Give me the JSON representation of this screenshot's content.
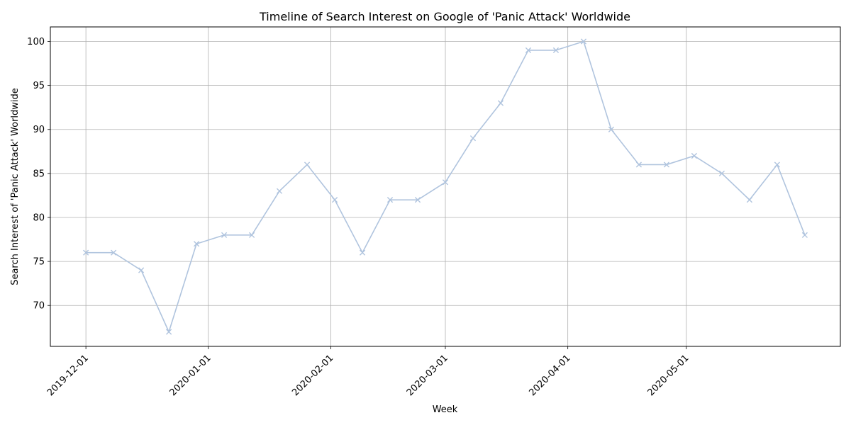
{
  "chart_data": {
    "type": "line",
    "title": "Timeline of Search Interest on Google of 'Panic Attack' Worldwide",
    "xlabel": "Week",
    "ylabel": "Search Interest of 'Panic Attack' Worldwide",
    "x_type": "date",
    "x": [
      "2019-12-01",
      "2019-12-08",
      "2019-12-15",
      "2019-12-22",
      "2019-12-29",
      "2020-01-05",
      "2020-01-12",
      "2020-01-19",
      "2020-01-26",
      "2020-02-02",
      "2020-02-09",
      "2020-02-16",
      "2020-02-23",
      "2020-03-01",
      "2020-03-08",
      "2020-03-15",
      "2020-03-22",
      "2020-03-29",
      "2020-04-05",
      "2020-04-12",
      "2020-04-19",
      "2020-04-26",
      "2020-05-03",
      "2020-05-10",
      "2020-05-17",
      "2020-05-24",
      "2020-05-31"
    ],
    "series": [
      {
        "values": [
          76,
          76,
          74,
          67,
          77,
          78,
          78,
          83,
          86,
          82,
          76,
          82,
          82,
          84,
          89,
          93,
          99,
          99,
          100,
          90,
          86,
          86,
          87,
          85,
          82,
          86,
          78
        ],
        "color": "#b0c4de",
        "marker": "x"
      }
    ],
    "x_ticks": [
      "2019-12-01",
      "2020-01-01",
      "2020-02-01",
      "2020-03-01",
      "2020-04-01",
      "2020-05-01"
    ],
    "y_ticks": [
      70,
      75,
      80,
      85,
      90,
      95,
      100
    ],
    "xlim": [
      "2019-11-22",
      "2020-06-09"
    ],
    "ylim": [
      65.35,
      101.65
    ],
    "grid": true,
    "legend": "none"
  }
}
